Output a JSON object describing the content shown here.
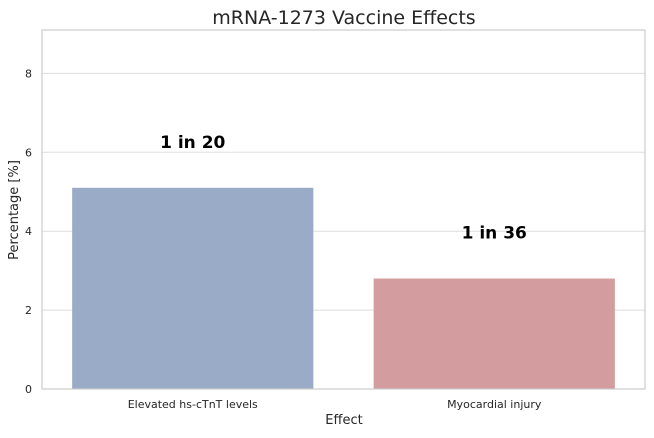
{
  "chart_data": {
    "type": "bar",
    "title": "mRNA-1273 Vaccine Effects",
    "xlabel": "Effect",
    "ylabel": "Percentage [%]",
    "categories": [
      "Elevated hs-cTnT levels",
      "Myocardial injury"
    ],
    "values": [
      5.1,
      2.8
    ],
    "bar_labels": [
      "1 in 20",
      "1 in 36"
    ],
    "colors": [
      "#9aabc8",
      "#d39c9e"
    ],
    "ylim": [
      0,
      9.1
    ],
    "yticks": [
      "0",
      "2",
      "4",
      "6",
      "8"
    ],
    "grid": true,
    "legend": "none"
  }
}
